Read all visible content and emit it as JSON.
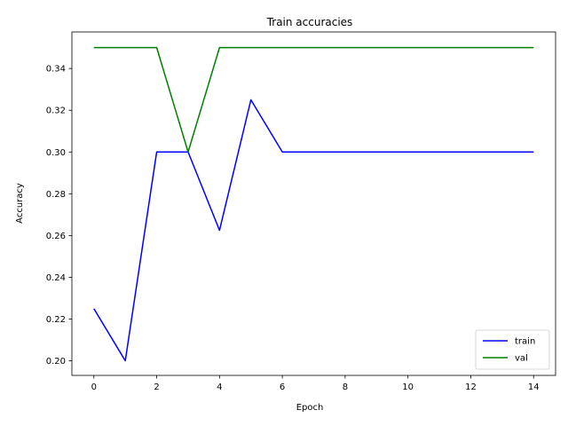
{
  "chart_data": {
    "type": "line",
    "title": "Train accuracies",
    "xlabel": "Epoch",
    "ylabel": "Accuracy",
    "x": [
      0,
      1,
      2,
      3,
      4,
      5,
      6,
      7,
      8,
      9,
      10,
      11,
      12,
      13,
      14
    ],
    "xlim": [
      -0.7,
      14.7
    ],
    "ylim": [
      0.193,
      0.3575
    ],
    "xticks": [
      0,
      2,
      4,
      6,
      8,
      10,
      12,
      14
    ],
    "yticks": [
      0.2,
      0.22,
      0.24,
      0.26,
      0.28,
      0.3,
      0.32,
      0.34
    ],
    "grid": false,
    "legend_position": "lower-right",
    "series": [
      {
        "name": "train",
        "color": "#0000ff",
        "values": [
          0.225,
          0.2,
          0.3,
          0.3,
          0.2625,
          0.325,
          0.3,
          0.3,
          0.3,
          0.3,
          0.3,
          0.3,
          0.3,
          0.3,
          0.3
        ]
      },
      {
        "name": "val",
        "color": "#008000",
        "values": [
          0.35,
          0.35,
          0.35,
          0.3,
          0.35,
          0.35,
          0.35,
          0.35,
          0.35,
          0.35,
          0.35,
          0.35,
          0.35,
          0.35,
          0.35
        ]
      }
    ]
  }
}
